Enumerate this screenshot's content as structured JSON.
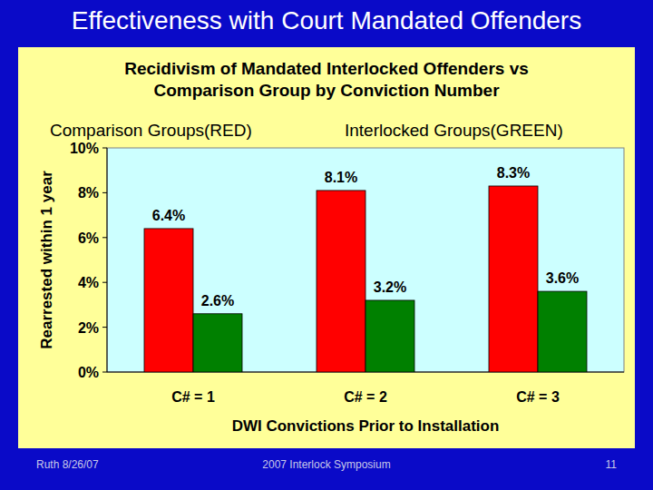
{
  "slide": {
    "title": "Effectiveness with Court Mandated Offenders",
    "footer": [
      "Ruth 8/26/07",
      "2007 Interlock Symposium",
      "11"
    ]
  },
  "chart_data": {
    "type": "bar",
    "title": "Recidivism of Mandated Interlocked Offenders vs Comparison Group by Conviction Number",
    "x_label": "DWI Convictions Prior to Installation",
    "y_label": "Rearrested within 1 year",
    "categories": [
      "C# = 1",
      "C# = 2",
      "C# = 3"
    ],
    "series": [
      {
        "name": "Comparison Groups(RED)",
        "color": "#ff0000",
        "values": [
          6.4,
          8.1,
          8.3
        ],
        "value_labels": [
          "6.4%",
          "8.1%",
          "8.3%"
        ]
      },
      {
        "name": "Interlocked Groups(GREEN)",
        "color": "#008000",
        "values": [
          2.6,
          3.2,
          3.6
        ],
        "value_labels": [
          "2.6%",
          "3.2%",
          "3.6%"
        ]
      }
    ],
    "ylim": [
      0,
      10
    ],
    "yticks": [
      {
        "value": 0,
        "label": "0%"
      },
      {
        "value": 2,
        "label": "2%"
      },
      {
        "value": 4,
        "label": "4%"
      },
      {
        "value": 6,
        "label": "6%"
      },
      {
        "value": 8,
        "label": "8%"
      },
      {
        "value": 10,
        "label": "10%"
      }
    ],
    "grid": false,
    "legend": "top",
    "data_labels": true
  }
}
